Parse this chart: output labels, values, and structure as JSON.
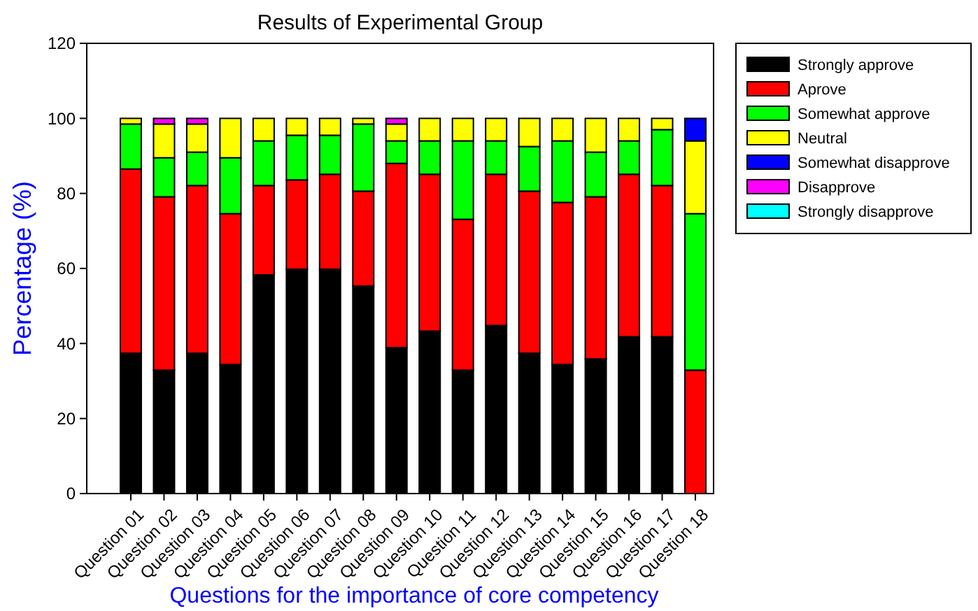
{
  "chart_data": {
    "type": "bar",
    "stacked": true,
    "title": "Results of Experimental Group",
    "xlabel": "Questions for the importance of core competency",
    "ylabel": "Percentage (%)",
    "categories": [
      "Question 01",
      "Question 02",
      "Question 03",
      "Question 04",
      "Question 05",
      "Question 06",
      "Question 07",
      "Question 08",
      "Question 09",
      "Question 10",
      "Question 11",
      "Question 12",
      "Question 13",
      "Question 14",
      "Question 15",
      "Question 16",
      "Question 17",
      "Question 18"
    ],
    "series": [
      {
        "name": "Strongly approve",
        "color": "#000000",
        "values": [
          37.4,
          32.9,
          37.4,
          34.4,
          58.3,
          59.8,
          59.8,
          55.3,
          38.9,
          43.3,
          32.9,
          44.8,
          37.4,
          34.4,
          35.9,
          41.8,
          41.8,
          null
        ]
      },
      {
        "name": "Aprove",
        "color": "#ff0000",
        "values": [
          49.1,
          46.2,
          44.7,
          40.2,
          23.8,
          23.8,
          25.3,
          25.3,
          49.1,
          41.8,
          40.2,
          40.3,
          43.2,
          43.2,
          43.2,
          43.3,
          40.3,
          32.9
        ]
      },
      {
        "name": "Somewhat approve",
        "color": "#00ff00",
        "values": [
          12.0,
          10.4,
          8.9,
          14.9,
          11.9,
          11.9,
          10.4,
          17.9,
          6.0,
          8.9,
          20.9,
          8.9,
          11.9,
          16.4,
          11.9,
          8.9,
          14.9,
          41.7
        ]
      },
      {
        "name": "Neutral",
        "color": "#ffff00",
        "values": [
          1.5,
          9.0,
          7.5,
          10.5,
          6.0,
          4.5,
          4.5,
          1.5,
          4.5,
          6.0,
          6.0,
          6.0,
          7.5,
          6.0,
          9.0,
          6.0,
          3.0,
          19.4
        ]
      },
      {
        "name": "Somewhat disapprove",
        "color": "#0000ff",
        "values": [
          null,
          null,
          null,
          null,
          null,
          null,
          null,
          null,
          null,
          null,
          null,
          null,
          null,
          null,
          null,
          null,
          null,
          6.0
        ]
      },
      {
        "name": "Disapprove",
        "color": "#ff00ff",
        "values": [
          null,
          1.5,
          1.5,
          null,
          null,
          null,
          null,
          null,
          1.5,
          null,
          null,
          null,
          null,
          null,
          null,
          null,
          null,
          null
        ]
      },
      {
        "name": "Strongly disapprove",
        "color": "#00ffff",
        "values": [
          null,
          null,
          null,
          null,
          null,
          null,
          null,
          null,
          null,
          null,
          null,
          null,
          null,
          null,
          null,
          null,
          null,
          null
        ]
      }
    ],
    "ylim": [
      0,
      120
    ],
    "yticks": [
      0,
      20,
      40,
      60,
      80,
      100,
      120
    ],
    "legend": "top right"
  }
}
